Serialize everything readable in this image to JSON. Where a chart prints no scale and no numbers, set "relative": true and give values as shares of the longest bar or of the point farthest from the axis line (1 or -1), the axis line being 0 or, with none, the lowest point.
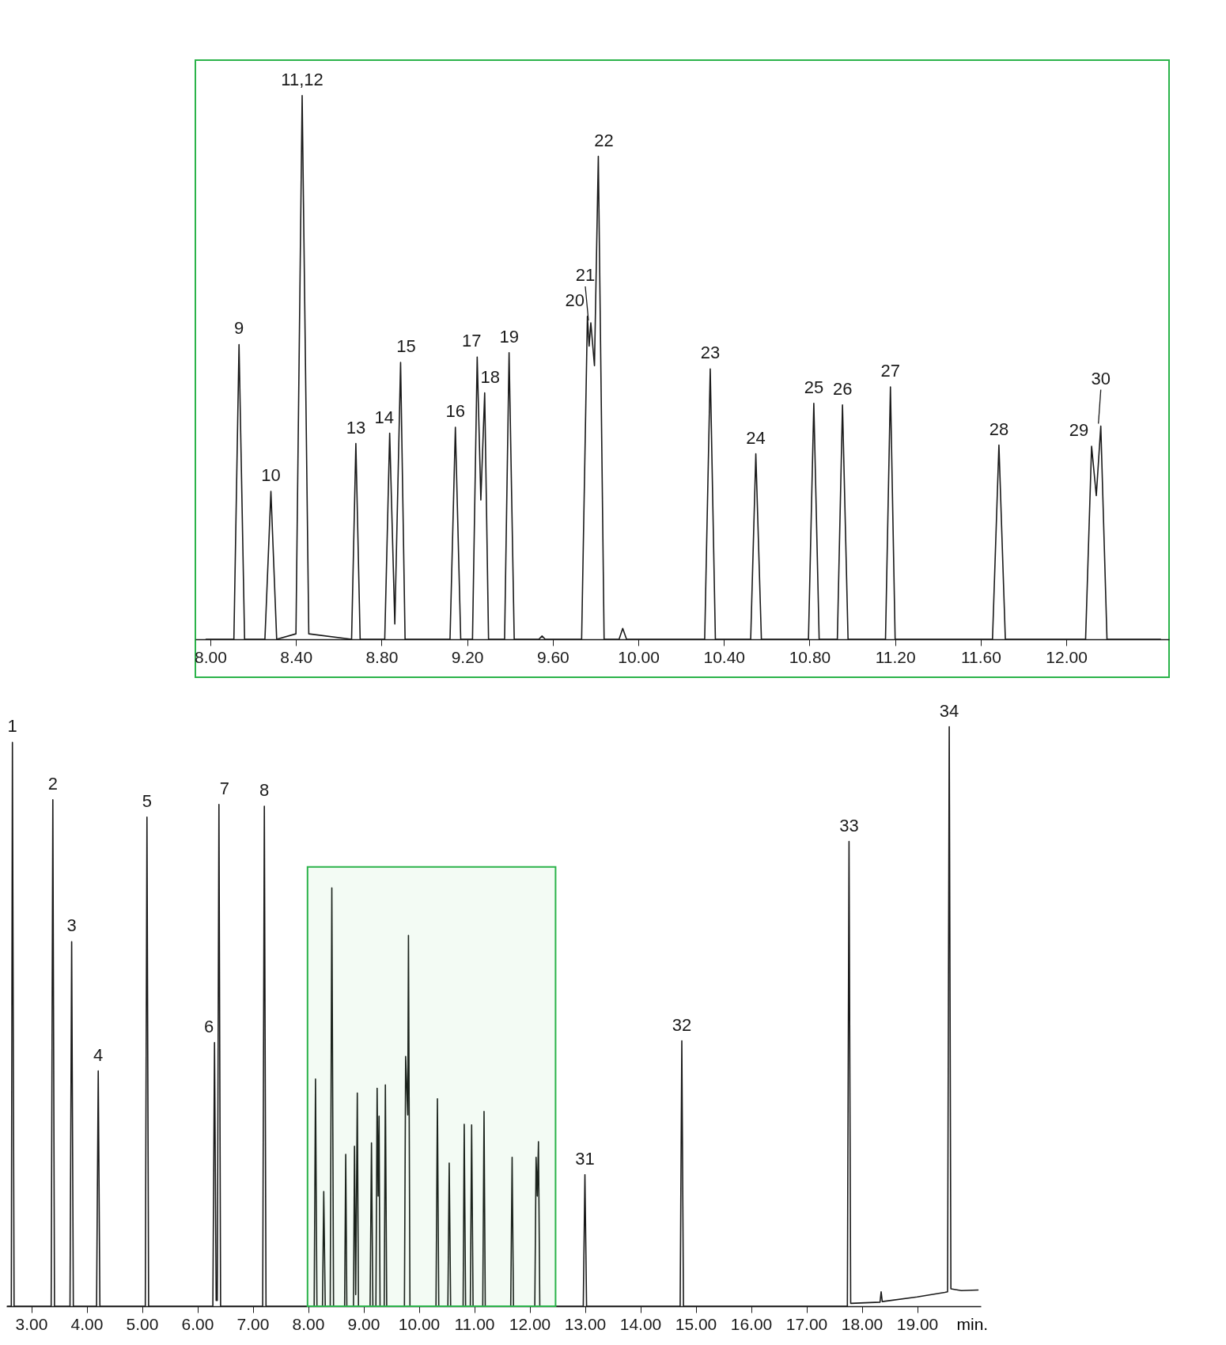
{
  "chart_data": [
    {
      "type": "line",
      "relative": true,
      "xlim": [
        7.93,
        12.48
      ],
      "tick_labels": "x",
      "xticks": [
        {
          "value": 8.0,
          "label": "8.00"
        },
        {
          "value": 8.4,
          "label": "8.40"
        },
        {
          "value": 8.8,
          "label": "8.80"
        },
        {
          "value": 9.2,
          "label": "9.20"
        },
        {
          "value": 9.6,
          "label": "9.60"
        },
        {
          "value": 10.0,
          "label": "10.00"
        },
        {
          "value": 10.4,
          "label": "10.40"
        },
        {
          "value": 10.8,
          "label": "10.80"
        },
        {
          "value": 11.2,
          "label": "11.20"
        },
        {
          "value": 11.6,
          "label": "11.60"
        },
        {
          "value": 12.0,
          "label": "12.00"
        }
      ],
      "series": [
        {
          "color": "#1a1a1a",
          "x": [
            7.98,
            8.11,
            8.134,
            8.16,
            8.255,
            8.283,
            8.31,
            8.4,
            8.429,
            8.46,
            8.66,
            8.68,
            8.7,
            8.815,
            8.838,
            8.862,
            8.889,
            8.91,
            9.12,
            9.145,
            9.17,
            9.225,
            9.247,
            9.264,
            9.282,
            9.3,
            9.375,
            9.396,
            9.42,
            9.535,
            9.55,
            9.565,
            9.735,
            9.762,
            9.77,
            9.778,
            9.795,
            9.813,
            9.84,
            9.91,
            9.927,
            9.945,
            10.31,
            10.336,
            10.36,
            10.525,
            10.549,
            10.575,
            10.795,
            10.82,
            10.845,
            10.93,
            10.954,
            10.98,
            11.155,
            11.178,
            11.2,
            11.655,
            11.685,
            11.715,
            12.09,
            12.118,
            12.14,
            12.161,
            12.19,
            12.44
          ],
          "values": [
            0,
            0,
            0.542,
            0,
            0,
            0.272,
            0,
            0.01,
            1.0,
            0.01,
            0,
            0.36,
            0,
            0,
            0.379,
            0.028,
            0.509,
            0,
            0,
            0.39,
            0,
            0,
            0.519,
            0.256,
            0.453,
            0,
            0,
            0.527,
            0,
            0,
            0.006,
            0,
            0,
            0.594,
            0.539,
            0.582,
            0.503,
            0.888,
            0,
            0,
            0.02,
            0,
            0,
            0.497,
            0,
            0,
            0.341,
            0,
            0,
            0.434,
            0,
            0,
            0.431,
            0,
            0,
            0.464,
            0,
            0,
            0.357,
            0,
            0,
            0.355,
            0.264,
            0.392,
            0,
            0
          ]
        }
      ],
      "annotations": [
        {
          "text": "9",
          "x": 8.134,
          "y": 0.542
        },
        {
          "text": "10",
          "x": 8.283,
          "y": 0.272
        },
        {
          "text": "11,12",
          "x": 8.429,
          "y": 1.0
        },
        {
          "text": "13",
          "x": 8.68,
          "y": 0.36
        },
        {
          "text": "14",
          "x": 8.838,
          "y": 0.379
        },
        {
          "text": "15",
          "x": 8.889,
          "y": 0.509
        },
        {
          "text": "16",
          "x": 9.145,
          "y": 0.39
        },
        {
          "text": "17",
          "x": 9.247,
          "y": 0.519
        },
        {
          "text": "18",
          "x": 9.282,
          "y": 0.453
        },
        {
          "text": "19",
          "x": 9.396,
          "y": 0.527
        },
        {
          "text": "20",
          "x": 9.762,
          "y": 0.594
        },
        {
          "text": "21",
          "x": 9.778,
          "y": 0.582
        },
        {
          "text": "22",
          "x": 9.813,
          "y": 0.888
        },
        {
          "text": "23",
          "x": 10.336,
          "y": 0.497
        },
        {
          "text": "24",
          "x": 10.549,
          "y": 0.341
        },
        {
          "text": "25",
          "x": 10.82,
          "y": 0.434
        },
        {
          "text": "26",
          "x": 10.954,
          "y": 0.431
        },
        {
          "text": "27",
          "x": 11.178,
          "y": 0.464
        },
        {
          "text": "28",
          "x": 11.685,
          "y": 0.357
        },
        {
          "text": "29",
          "x": 12.118,
          "y": 0.355
        },
        {
          "text": "30",
          "x": 12.161,
          "y": 0.392
        }
      ]
    },
    {
      "type": "line",
      "relative": true,
      "xlim": [
        2.55,
        20.15
      ],
      "xlabel": "min.",
      "tick_labels": "x",
      "xticks": [
        {
          "value": 3,
          "label": "3.00"
        },
        {
          "value": 4,
          "label": "4.00"
        },
        {
          "value": 5,
          "label": "5.00"
        },
        {
          "value": 6,
          "label": "6.00"
        },
        {
          "value": 7,
          "label": "7.00"
        },
        {
          "value": 8,
          "label": "8.00"
        },
        {
          "value": 9,
          "label": "9.00"
        },
        {
          "value": 10,
          "label": "10.00"
        },
        {
          "value": 11,
          "label": "11.00"
        },
        {
          "value": 12,
          "label": "12.00"
        },
        {
          "value": 13,
          "label": "13.00"
        },
        {
          "value": 14,
          "label": "14.00"
        },
        {
          "value": 15,
          "label": "15.00"
        },
        {
          "value": 16,
          "label": "16.00"
        },
        {
          "value": 17,
          "label": "17.00"
        },
        {
          "value": 18,
          "label": "18.00"
        },
        {
          "value": 19,
          "label": "19.00"
        }
      ],
      "series": [
        {
          "color": "#1a1a1a",
          "x": [
            2.57,
            2.64,
            2.66,
            2.69,
            3.36,
            3.39,
            3.42,
            3.7,
            3.73,
            3.76,
            4.18,
            4.21,
            4.24,
            5.06,
            5.09,
            5.12,
            6.28,
            6.31,
            6.34,
            6.36,
            6.39,
            6.42,
            7.18,
            7.21,
            7.24,
            8.11,
            8.134,
            8.16,
            8.26,
            8.283,
            8.31,
            8.4,
            8.429,
            8.46,
            8.66,
            8.68,
            8.7,
            8.82,
            8.838,
            8.86,
            8.889,
            8.91,
            9.12,
            9.145,
            9.17,
            9.225,
            9.247,
            9.265,
            9.282,
            9.3,
            9.375,
            9.396,
            9.42,
            9.74,
            9.762,
            9.8,
            9.813,
            9.84,
            10.31,
            10.336,
            10.36,
            10.525,
            10.549,
            10.575,
            10.8,
            10.82,
            10.845,
            10.93,
            10.954,
            10.98,
            11.155,
            11.178,
            11.2,
            11.66,
            11.685,
            11.71,
            12.095,
            12.118,
            12.14,
            12.161,
            12.185,
            12.97,
            13.0,
            13.03,
            14.72,
            14.75,
            14.78,
            17.74,
            17.77,
            17.8,
            18.33,
            18.35,
            18.37,
            19.0,
            19.5,
            19.55,
            19.58,
            19.61,
            19.8,
            20.1
          ],
          "values": [
            0,
            0,
            0.973,
            0,
            0,
            0.874,
            0,
            0,
            0.629,
            0,
            0,
            0.406,
            0,
            0,
            0.844,
            0,
            0,
            0.455,
            0.01,
            0.01,
            0.866,
            0,
            0,
            0.863,
            0,
            0,
            0.392,
            0,
            0,
            0.198,
            0,
            0,
            0.722,
            0,
            0,
            0.262,
            0,
            0,
            0.276,
            0.02,
            0.368,
            0,
            0,
            0.282,
            0,
            0,
            0.376,
            0.19,
            0.328,
            0,
            0,
            0.382,
            0,
            0,
            0.431,
            0.33,
            0.64,
            0,
            0,
            0.358,
            0,
            0,
            0.247,
            0,
            0,
            0.314,
            0,
            0,
            0.313,
            0,
            0,
            0.336,
            0,
            0,
            0.257,
            0,
            0,
            0.257,
            0.19,
            0.284,
            0,
            0,
            0.227,
            0,
            0,
            0.458,
            0,
            0,
            0.802,
            0.005,
            0.007,
            0.025,
            0.008,
            0.016,
            0.024,
            0.025,
            1.0,
            0.03,
            0.027,
            0.028
          ]
        }
      ],
      "bands": [
        {
          "axis": "x",
          "from": 7.99,
          "to": 12.47,
          "color": "#2bb34a"
        }
      ],
      "annotations": [
        {
          "text": "1",
          "x": 2.66,
          "y": 0.973
        },
        {
          "text": "2",
          "x": 3.39,
          "y": 0.874
        },
        {
          "text": "3",
          "x": 3.73,
          "y": 0.629
        },
        {
          "text": "4",
          "x": 4.21,
          "y": 0.406
        },
        {
          "text": "5",
          "x": 5.09,
          "y": 0.844
        },
        {
          "text": "6",
          "x": 6.31,
          "y": 0.455
        },
        {
          "text": "7",
          "x": 6.39,
          "y": 0.866
        },
        {
          "text": "8",
          "x": 7.21,
          "y": 0.863
        },
        {
          "text": "31",
          "x": 13.0,
          "y": 0.227
        },
        {
          "text": "32",
          "x": 14.75,
          "y": 0.458
        },
        {
          "text": "33",
          "x": 17.77,
          "y": 0.802
        },
        {
          "text": "34",
          "x": 19.58,
          "y": 1.0
        }
      ]
    }
  ]
}
